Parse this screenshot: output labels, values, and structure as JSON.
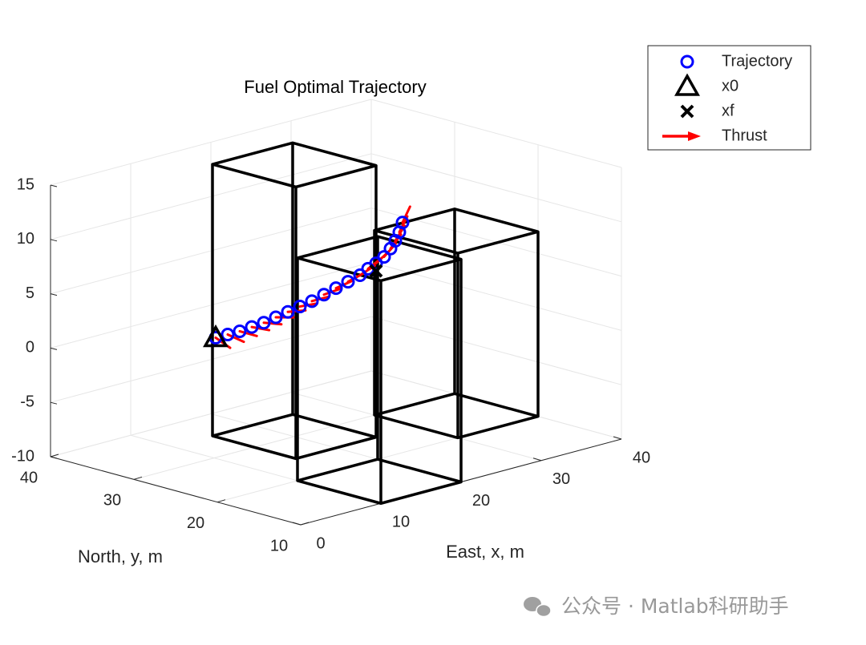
{
  "chart_data": {
    "type": "scatter3d",
    "title": "Fuel Optimal Trajectory",
    "xlabel": "East, x, m",
    "ylabel": "North, y, m",
    "xlim": [
      0,
      40
    ],
    "ylim": [
      10,
      40
    ],
    "zlim": [
      -10,
      15
    ],
    "xticks": [
      0,
      10,
      20,
      30,
      40
    ],
    "yticks": [
      10,
      20,
      30,
      40
    ],
    "zticks": [
      -10,
      -5,
      0,
      5,
      10,
      15
    ],
    "grid": true,
    "legend": "outside-upper-right",
    "series": [
      {
        "name": "Trajectory",
        "color": "#0000ff",
        "marker": "circle",
        "x": [
          5,
          6.5,
          8,
          9.5,
          11,
          12.5,
          14,
          15.5,
          17,
          18.5,
          20,
          21.5,
          23,
          24,
          25,
          26,
          26.8,
          27.4,
          27.9,
          28.3
        ],
        "y": [
          25,
          25,
          25,
          25,
          25,
          25,
          25,
          25,
          25,
          25,
          25,
          25,
          25,
          25,
          25,
          25,
          25,
          25,
          25,
          25
        ],
        "z": [
          3.1,
          3.1,
          3.1,
          3.2,
          3.3,
          3.5,
          3.7,
          3.9,
          4.1,
          4.4,
          4.7,
          5.0,
          5.3,
          5.7,
          6.0,
          6.4,
          7.0,
          7.6,
          8.3,
          9.1
        ]
      },
      {
        "name": "x0",
        "color": "#000000",
        "marker": "triangle",
        "x": [
          5
        ],
        "y": [
          25
        ],
        "z": [
          3.1
        ]
      },
      {
        "name": "xf",
        "color": "#000000",
        "marker": "x",
        "x": [
          25
        ],
        "y": [
          25
        ],
        "z": [
          5.3
        ]
      },
      {
        "name": "Thrust",
        "color": "#ff0000",
        "marker": "arrow",
        "u": [
          1.4,
          1.5,
          1.5,
          1.5,
          1.5,
          1.5,
          1.5,
          1.5,
          1.5,
          1.5,
          1.5,
          1.5,
          1.4,
          1.3,
          1.2,
          1.1,
          1.0,
          0.9,
          0.8,
          0.8
        ],
        "v": [
          0,
          0,
          0,
          0,
          0,
          0,
          0,
          0,
          0,
          0,
          0,
          0,
          0,
          0,
          0,
          0,
          0,
          0,
          0,
          0
        ],
        "w": [
          -1.0,
          -0.8,
          -0.6,
          -0.5,
          -0.4,
          -0.3,
          -0.2,
          -0.1,
          0,
          0.1,
          0.2,
          0.3,
          0.4,
          0.5,
          0.6,
          0.7,
          0.8,
          0.9,
          1.0,
          1.1
        ]
      }
    ],
    "buildings": [
      {
        "x": [
          15,
          25
        ],
        "y": [
          25,
          35
        ],
        "z": [
          -10,
          15
        ]
      },
      {
        "x": [
          30,
          40
        ],
        "y": [
          20,
          30
        ],
        "z": [
          -10,
          7
        ]
      },
      {
        "x": [
          10,
          20
        ],
        "y": [
          10,
          20
        ],
        "z": [
          -10,
          10.5
        ]
      }
    ],
    "building_color": "#000000"
  },
  "watermark": "公众号 · Matlab科研助手"
}
